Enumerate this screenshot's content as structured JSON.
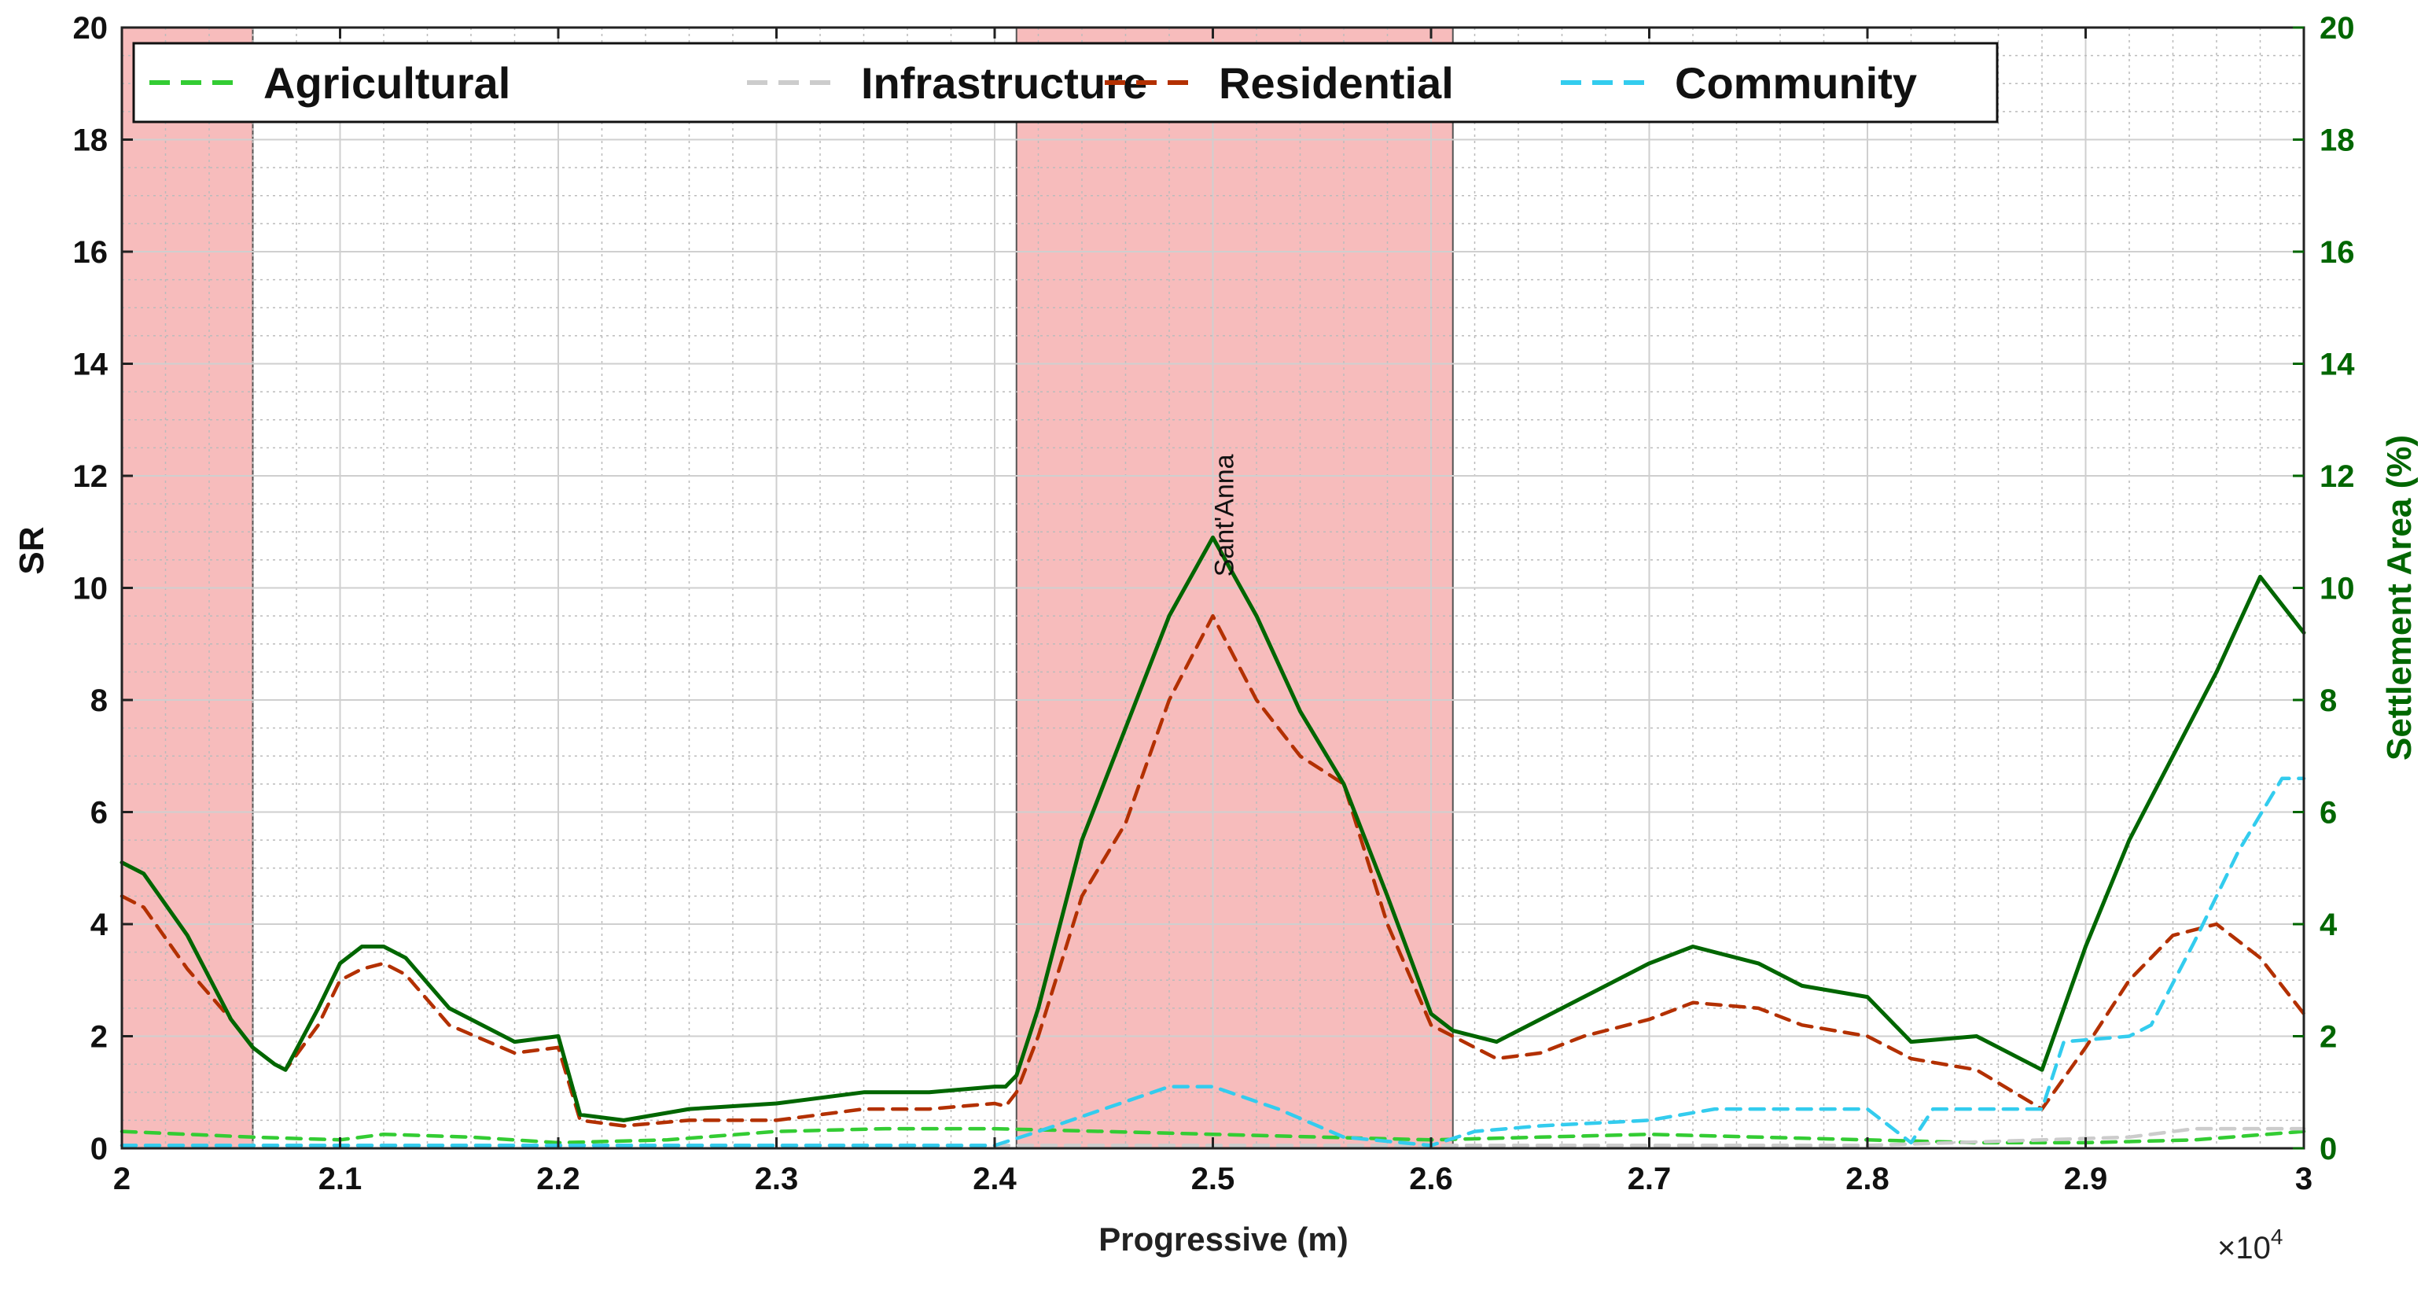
{
  "chart_data": {
    "type": "line",
    "title": "",
    "xlabel": "Progressive (m)",
    "x_multiplier_label": "×10",
    "x_multiplier_exp": "4",
    "xlim": [
      20000,
      30000
    ],
    "xticks": [
      20000,
      21000,
      22000,
      23000,
      24000,
      25000,
      26000,
      27000,
      28000,
      29000,
      30000
    ],
    "xtick_labels": [
      "2",
      "2.1",
      "2.2",
      "2.3",
      "2.4",
      "2.5",
      "2.6",
      "2.7",
      "2.8",
      "2.9",
      "3"
    ],
    "ylabel_left": "SR",
    "ylim_left": [
      0,
      20
    ],
    "ylabel_right": "Settlement Area (%)",
    "ylim_right": [
      0,
      20
    ],
    "yticks": [
      0,
      2,
      4,
      6,
      8,
      10,
      12,
      14,
      16,
      18,
      20
    ],
    "ytick_labels": [
      "0",
      "2",
      "4",
      "6",
      "8",
      "10",
      "12",
      "14",
      "16",
      "18",
      "20"
    ],
    "grid": true,
    "minor_grid": true,
    "legend_position": "top",
    "colors": {
      "agricultural": "#33cc33",
      "infrastructure": "#cccccc",
      "residential": "#b33000",
      "community": "#33ccee",
      "settlement_area": "#006600",
      "highlight": "#f4a0a0"
    },
    "highlight_regions": [
      {
        "x0": 20000,
        "x1": 20600
      },
      {
        "x0": 24100,
        "x1": 26100
      }
    ],
    "annotations": [
      {
        "text": "Sant'Anna",
        "x": 25050,
        "y": 10.2,
        "rotation": -90
      }
    ],
    "series": [
      {
        "name": "Agricultural",
        "axis": "left",
        "style": "dashed",
        "x": [
          20000,
          20300,
          20600,
          21000,
          21200,
          21600,
          22000,
          22500,
          23000,
          23500,
          24000,
          24500,
          25000,
          25500,
          26000,
          26500,
          27000,
          27500,
          28000,
          28500,
          29000,
          29500,
          30000
        ],
        "y": [
          0.3,
          0.25,
          0.2,
          0.15,
          0.25,
          0.2,
          0.1,
          0.15,
          0.3,
          0.35,
          0.35,
          0.3,
          0.25,
          0.2,
          0.15,
          0.2,
          0.25,
          0.2,
          0.15,
          0.1,
          0.1,
          0.15,
          0.3
        ]
      },
      {
        "name": "Infrastructure",
        "axis": "left",
        "style": "dashed",
        "x": [
          20000,
          22000,
          24000,
          26000,
          28000,
          29200,
          29500,
          30000
        ],
        "y": [
          0.05,
          0.05,
          0.05,
          0.05,
          0.05,
          0.2,
          0.35,
          0.35
        ]
      },
      {
        "name": "Residential",
        "axis": "left",
        "style": "dashed",
        "x": [
          20000,
          20100,
          20300,
          20500,
          20600,
          20700,
          20750,
          20900,
          21000,
          21100,
          21200,
          21300,
          21500,
          21800,
          22000,
          22100,
          22300,
          22600,
          23000,
          23400,
          23700,
          24000,
          24050,
          24100,
          24200,
          24400,
          24600,
          24800,
          25000,
          25200,
          25400,
          25600,
          25800,
          26000,
          26100,
          26300,
          26500,
          26700,
          27000,
          27200,
          27500,
          27700,
          28000,
          28200,
          28500,
          28800,
          29000,
          29200,
          29400,
          29600,
          29800,
          30000
        ],
        "y": [
          4.5,
          4.3,
          3.2,
          2.3,
          1.8,
          1.5,
          1.4,
          2.2,
          3.0,
          3.2,
          3.3,
          3.1,
          2.2,
          1.7,
          1.8,
          0.5,
          0.4,
          0.5,
          0.5,
          0.7,
          0.7,
          0.8,
          0.75,
          1.0,
          2.0,
          4.5,
          5.8,
          8.0,
          9.5,
          8.0,
          7.0,
          6.5,
          4.0,
          2.2,
          2.0,
          1.6,
          1.7,
          2.0,
          2.3,
          2.6,
          2.5,
          2.2,
          2.0,
          1.6,
          1.4,
          0.7,
          1.8,
          3.0,
          3.8,
          4.0,
          3.4,
          2.4
        ]
      },
      {
        "name": "Community",
        "axis": "left",
        "style": "dashed",
        "x": [
          20000,
          21000,
          22000,
          23000,
          24000,
          24200,
          24500,
          24800,
          25000,
          25300,
          25600,
          26000,
          26200,
          26500,
          27000,
          27300,
          27600,
          28000,
          28200,
          28300,
          28800,
          28900,
          29200,
          29300,
          29500,
          29700,
          29900,
          30000
        ],
        "y": [
          0.05,
          0.05,
          0.05,
          0.05,
          0.05,
          0.3,
          0.7,
          1.1,
          1.1,
          0.7,
          0.2,
          0.05,
          0.3,
          0.4,
          0.5,
          0.7,
          0.7,
          0.7,
          0.1,
          0.7,
          0.7,
          1.9,
          2.0,
          2.2,
          3.7,
          5.3,
          6.6,
          6.6
        ]
      },
      {
        "name": "",
        "axis": "right",
        "style": "solid",
        "x": [
          20000,
          20100,
          20300,
          20500,
          20600,
          20700,
          20750,
          20900,
          21000,
          21100,
          21200,
          21300,
          21500,
          21800,
          22000,
          22100,
          22300,
          22600,
          23000,
          23400,
          23700,
          24000,
          24050,
          24100,
          24200,
          24400,
          24600,
          24800,
          25000,
          25200,
          25400,
          25600,
          25800,
          26000,
          26100,
          26300,
          26500,
          26700,
          27000,
          27200,
          27500,
          27700,
          28000,
          28200,
          28500,
          28800,
          29000,
          29200,
          29400,
          29600,
          29800,
          30000
        ],
        "y": [
          5.1,
          4.9,
          3.8,
          2.3,
          1.8,
          1.5,
          1.4,
          2.5,
          3.3,
          3.6,
          3.6,
          3.4,
          2.5,
          1.9,
          2.0,
          0.6,
          0.5,
          0.7,
          0.8,
          1.0,
          1.0,
          1.1,
          1.1,
          1.3,
          2.5,
          5.5,
          7.5,
          9.5,
          10.9,
          9.5,
          7.8,
          6.5,
          4.5,
          2.4,
          2.1,
          1.9,
          2.3,
          2.7,
          3.3,
          3.6,
          3.3,
          2.9,
          2.7,
          1.9,
          2.0,
          1.4,
          3.6,
          5.5,
          7.0,
          8.5,
          10.2,
          9.2
        ]
      }
    ]
  }
}
